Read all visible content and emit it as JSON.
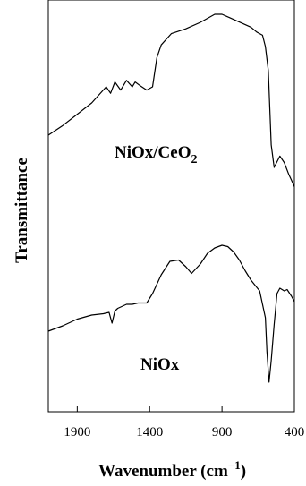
{
  "chart_data": {
    "type": "line",
    "xlabel": "Wavenumber (cm",
    "xlabel_sup": "−1",
    "xlabel_close": ")",
    "ylabel": "Transmittance",
    "xlim": [
      2100,
      400
    ],
    "x_reversed": true,
    "x_ticks": [
      1900,
      1400,
      900,
      400
    ],
    "y_ticks": [],
    "grid": false,
    "legend": "none",
    "line_color": "#000000",
    "series": [
      {
        "name": "NiOx/CeO",
        "name_sub": "2",
        "x": [
          2100,
          2000,
          1900,
          1800,
          1750,
          1700,
          1670,
          1640,
          1600,
          1560,
          1520,
          1500,
          1470,
          1420,
          1380,
          1350,
          1320,
          1250,
          1150,
          1050,
          950,
          900,
          850,
          800,
          750,
          700,
          660,
          640,
          620,
          600,
          580,
          560,
          540,
          500,
          470,
          440,
          420,
          400
        ],
        "y": [
          0.3,
          0.36,
          0.43,
          0.5,
          0.55,
          0.6,
          0.56,
          0.63,
          0.58,
          0.64,
          0.6,
          0.63,
          0.61,
          0.58,
          0.6,
          0.78,
          0.86,
          0.93,
          0.96,
          1.0,
          1.05,
          1.05,
          1.03,
          1.01,
          0.99,
          0.97,
          0.94,
          0.93,
          0.92,
          0.85,
          0.7,
          0.24,
          0.1,
          0.17,
          0.13,
          0.06,
          0.02,
          -0.02
        ]
      },
      {
        "name": "NiOx",
        "x": [
          2100,
          2000,
          1900,
          1800,
          1720,
          1680,
          1660,
          1640,
          1620,
          1600,
          1560,
          1520,
          1480,
          1420,
          1380,
          1320,
          1260,
          1200,
          1150,
          1110,
          1050,
          1000,
          950,
          900,
          860,
          820,
          780,
          740,
          700,
          670,
          640,
          600,
          590,
          575,
          560,
          540,
          520,
          500,
          470,
          450,
          420,
          400
        ],
        "y": [
          0.1,
          0.14,
          0.19,
          0.22,
          0.23,
          0.24,
          0.16,
          0.25,
          0.27,
          0.28,
          0.3,
          0.3,
          0.31,
          0.31,
          0.38,
          0.52,
          0.62,
          0.63,
          0.58,
          0.53,
          0.6,
          0.68,
          0.72,
          0.74,
          0.73,
          0.69,
          0.63,
          0.55,
          0.48,
          0.44,
          0.4,
          0.2,
          -0.05,
          -0.28,
          -0.12,
          0.15,
          0.38,
          0.42,
          0.4,
          0.41,
          0.36,
          0.32
        ]
      }
    ]
  }
}
